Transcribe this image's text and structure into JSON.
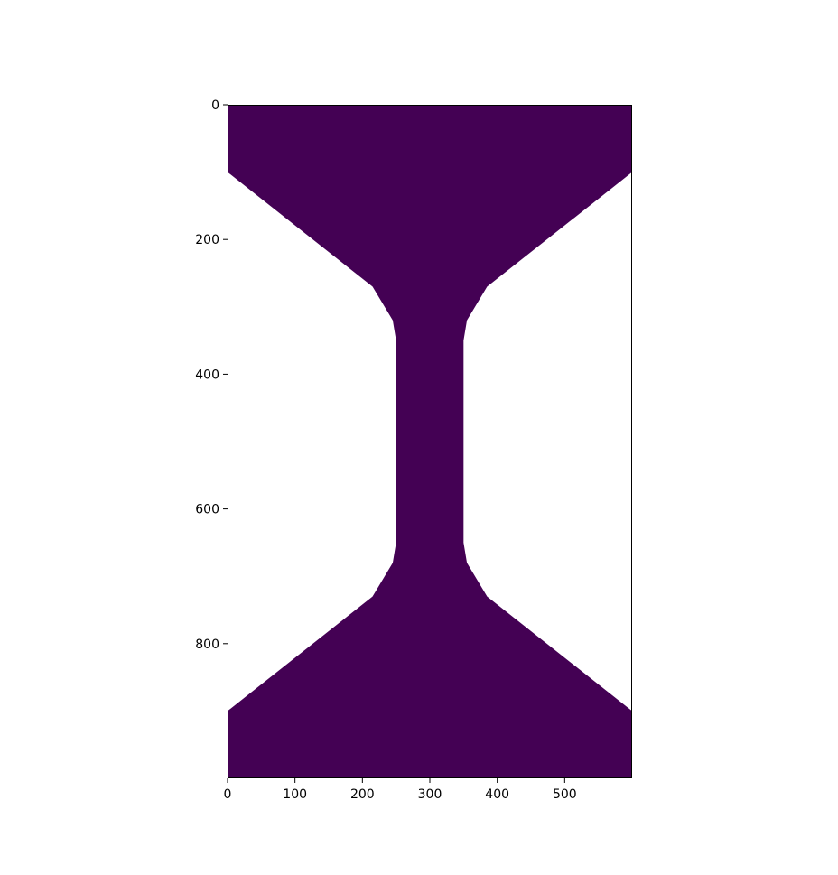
{
  "chart_data": {
    "type": "heatmap",
    "title": "",
    "xlabel": "",
    "ylabel": "",
    "xlim": [
      0,
      600
    ],
    "ylim": [
      1000,
      0
    ],
    "y_inverted": true,
    "grid": false,
    "legend": "none",
    "x_ticks": [
      0,
      100,
      200,
      300,
      400,
      500
    ],
    "y_ticks": [
      0,
      200,
      400,
      600,
      800
    ],
    "fill_color": "#440154",
    "background_color": "#ffffff",
    "region_outline": [
      [
        0,
        0
      ],
      [
        600,
        0
      ],
      [
        600,
        100
      ],
      [
        385,
        270
      ],
      [
        355,
        320
      ],
      [
        350,
        350
      ],
      [
        350,
        650
      ],
      [
        355,
        680
      ],
      [
        385,
        730
      ],
      [
        600,
        900
      ],
      [
        600,
        1000
      ],
      [
        0,
        1000
      ],
      [
        0,
        900
      ],
      [
        215,
        730
      ],
      [
        245,
        680
      ],
      [
        250,
        650
      ],
      [
        250,
        350
      ],
      [
        245,
        320
      ],
      [
        215,
        270
      ],
      [
        0,
        100
      ]
    ]
  }
}
